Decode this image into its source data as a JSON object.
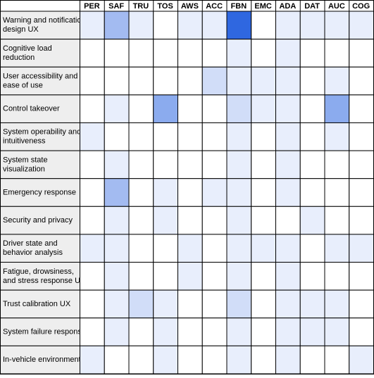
{
  "chart_data": {
    "type": "heatmap",
    "columns": [
      "PER",
      "SAF",
      "TRU",
      "TOS",
      "AWS",
      "ACC",
      "FBN",
      "EMC",
      "ADA",
      "DAT",
      "AUC",
      "COG"
    ],
    "rows": [
      [
        "Warning and notification",
        "design UX"
      ],
      [
        "Cognitive load",
        "reduction"
      ],
      [
        "User accessibility and",
        "ease of use"
      ],
      [
        "Control takeover"
      ],
      [
        "System operability and",
        "intuitiveness"
      ],
      [
        "System state",
        "visualization"
      ],
      [
        "Emergency response"
      ],
      [
        "Security and privacy"
      ],
      [
        "Driver state and",
        "behavior analysis"
      ],
      [
        "Fatigue, drowsiness,",
        "and stress response UX"
      ],
      [
        "Trust calibration UX"
      ],
      [
        "System failure response"
      ],
      [
        "In-vehicle environment"
      ]
    ],
    "values": [
      [
        1,
        4,
        1,
        0,
        1,
        1,
        9,
        0,
        1,
        1,
        1,
        1
      ],
      [
        0,
        0,
        0,
        0,
        0,
        0,
        1,
        0,
        1,
        0,
        0,
        0
      ],
      [
        0,
        0,
        0,
        0,
        0,
        2,
        1,
        1,
        1,
        0,
        1,
        0
      ],
      [
        0,
        1,
        0,
        5,
        0,
        0,
        2,
        1,
        1,
        0,
        5,
        0
      ],
      [
        1,
        0,
        0,
        0,
        0,
        0,
        1,
        0,
        1,
        0,
        1,
        0
      ],
      [
        0,
        1,
        0,
        0,
        0,
        0,
        1,
        0,
        1,
        0,
        0,
        0
      ],
      [
        0,
        4,
        0,
        1,
        0,
        1,
        1,
        0,
        1,
        0,
        0,
        0
      ],
      [
        0,
        1,
        0,
        1,
        0,
        0,
        1,
        0,
        0,
        1,
        0,
        0
      ],
      [
        1,
        1,
        0,
        0,
        1,
        0,
        1,
        1,
        1,
        0,
        1,
        1
      ],
      [
        0,
        1,
        0,
        0,
        1,
        0,
        1,
        0,
        1,
        0,
        0,
        0
      ],
      [
        0,
        1,
        2,
        1,
        0,
        0,
        2,
        0,
        1,
        1,
        1,
        0
      ],
      [
        0,
        1,
        0,
        1,
        0,
        0,
        1,
        0,
        1,
        1,
        1,
        0
      ],
      [
        1,
        0,
        0,
        1,
        0,
        0,
        1,
        0,
        1,
        0,
        0,
        1
      ]
    ],
    "vlim": [
      0,
      9
    ],
    "color_min": "#ffffff",
    "color_max": "#2f67e0"
  }
}
